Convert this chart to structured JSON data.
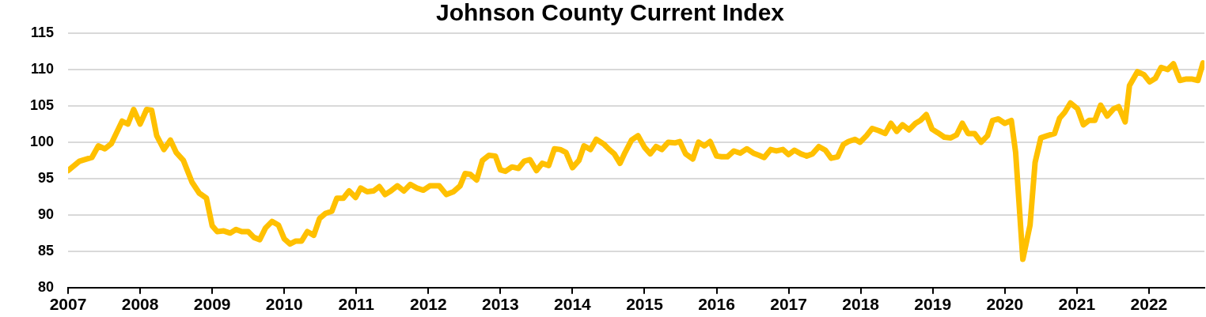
{
  "chart_data": {
    "type": "line",
    "title": "Johnson County Current Index",
    "x": [
      2007.0,
      2007.16,
      2007.33,
      2007.42,
      2007.51,
      2007.6,
      2007.75,
      2007.83,
      2007.91,
      2008.0,
      2008.09,
      2008.16,
      2008.23,
      2008.33,
      2008.42,
      2008.5,
      2008.6,
      2008.72,
      2008.82,
      2008.92,
      2009.0,
      2009.07,
      2009.16,
      2009.25,
      2009.33,
      2009.41,
      2009.5,
      2009.58,
      2009.66,
      2009.74,
      2009.83,
      2009.92,
      2010.0,
      2010.08,
      2010.16,
      2010.24,
      2010.32,
      2010.41,
      2010.49,
      2010.57,
      2010.66,
      2010.73,
      2010.82,
      2010.9,
      2010.99,
      2011.06,
      2011.15,
      2011.24,
      2011.32,
      2011.4,
      2011.48,
      2011.57,
      2011.66,
      2011.75,
      2011.84,
      2011.93,
      2012.02,
      2012.15,
      2012.25,
      2012.35,
      2012.44,
      2012.51,
      2012.58,
      2012.67,
      2012.75,
      2012.84,
      2012.93,
      2013.0,
      2013.07,
      2013.16,
      2013.25,
      2013.33,
      2013.41,
      2013.5,
      2013.58,
      2013.67,
      2013.75,
      2013.83,
      2013.91,
      2014.0,
      2014.09,
      2014.16,
      2014.25,
      2014.33,
      2014.44,
      2014.51,
      2014.58,
      2014.66,
      2014.73,
      2014.82,
      2014.91,
      2015.0,
      2015.08,
      2015.16,
      2015.24,
      2015.33,
      2015.42,
      2015.49,
      2015.57,
      2015.67,
      2015.75,
      2015.83,
      2015.91,
      2016.0,
      2016.07,
      2016.15,
      2016.24,
      2016.33,
      2016.42,
      2016.51,
      2016.59,
      2016.66,
      2016.75,
      2016.83,
      2016.92,
      2017.0,
      2017.08,
      2017.17,
      2017.25,
      2017.33,
      2017.42,
      2017.51,
      2017.59,
      2017.68,
      2017.76,
      2017.83,
      2017.92,
      2017.99,
      2018.08,
      2018.16,
      2018.25,
      2018.34,
      2018.42,
      2018.5,
      2018.58,
      2018.67,
      2018.76,
      2018.83,
      2018.91,
      2018.99,
      2019.07,
      2019.16,
      2019.25,
      2019.33,
      2019.41,
      2019.49,
      2019.58,
      2019.67,
      2019.76,
      2019.83,
      2019.91,
      2020.0,
      2020.09,
      2020.15,
      2020.25,
      2020.35,
      2020.42,
      2020.5,
      2020.59,
      2020.69,
      2020.76,
      2020.83,
      2020.91,
      2021.01,
      2021.09,
      2021.17,
      2021.25,
      2021.33,
      2021.42,
      2021.51,
      2021.58,
      2021.67,
      2021.73,
      2021.84,
      2021.93,
      2022.01,
      2022.09,
      2022.17,
      2022.26,
      2022.34,
      2022.43,
      2022.52,
      2022.59,
      2022.68,
      2022.75
    ],
    "series": [
      {
        "color": "#ffc000",
        "values": [
          96.1,
          97.4,
          97.9,
          99.5,
          99.1,
          99.8,
          102.9,
          102.5,
          104.5,
          102.5,
          104.5,
          104.4,
          100.9,
          99.0,
          100.3,
          98.6,
          97.5,
          94.5,
          93.0,
          92.3,
          88.5,
          87.7,
          87.8,
          87.5,
          88.0,
          87.7,
          87.7,
          86.9,
          86.6,
          88.2,
          89.1,
          88.6,
          86.7,
          86.0,
          86.4,
          86.4,
          87.7,
          87.2,
          89.5,
          90.2,
          90.5,
          92.3,
          92.3,
          93.3,
          92.4,
          93.7,
          93.2,
          93.3,
          93.9,
          92.8,
          93.3,
          94.0,
          93.3,
          94.2,
          93.7,
          93.4,
          94.0,
          94.0,
          92.8,
          93.2,
          94.0,
          95.7,
          95.6,
          94.8,
          97.5,
          98.2,
          98.1,
          96.2,
          96.0,
          96.6,
          96.4,
          97.4,
          97.6,
          96.1,
          97.1,
          96.8,
          99.1,
          99.0,
          98.6,
          96.5,
          97.5,
          99.5,
          99.0,
          100.4,
          99.7,
          99.0,
          98.4,
          97.1,
          98.6,
          100.3,
          100.9,
          99.3,
          98.4,
          99.4,
          99.0,
          100.0,
          99.9,
          100.1,
          98.4,
          97.7,
          100.0,
          99.5,
          100.1,
          98.1,
          98.0,
          98.0,
          98.8,
          98.5,
          99.1,
          98.5,
          98.2,
          97.9,
          99.0,
          98.8,
          99.0,
          98.3,
          98.9,
          98.4,
          98.1,
          98.4,
          99.4,
          98.9,
          97.8,
          98.0,
          99.7,
          100.1,
          100.4,
          100.0,
          100.9,
          101.9,
          101.6,
          101.2,
          102.6,
          101.5,
          102.4,
          101.7,
          102.6,
          103.0,
          103.8,
          101.8,
          101.3,
          100.7,
          100.6,
          101.0,
          102.6,
          101.2,
          101.2,
          100.0,
          100.9,
          103.0,
          103.2,
          102.6,
          103.0,
          98.6,
          83.9,
          88.6,
          97.2,
          100.6,
          100.9,
          101.2,
          103.3,
          104.1,
          105.4,
          104.6,
          102.4,
          103.0,
          103.0,
          105.1,
          103.6,
          104.6,
          104.9,
          102.8,
          107.8,
          109.7,
          109.3,
          108.3,
          108.8,
          110.3,
          110.0,
          110.8,
          108.5,
          108.7,
          108.7,
          108.5,
          110.9
        ]
      }
    ],
    "xlim": [
      2007,
      2022.77
    ],
    "xticks": [
      2007,
      2008,
      2009,
      2010,
      2011,
      2012,
      2013,
      2014,
      2015,
      2016,
      2017,
      2018,
      2019,
      2020,
      2021,
      2022
    ],
    "ylim": [
      80,
      115
    ],
    "yticks": [
      80,
      85,
      90,
      95,
      100,
      105,
      110,
      115
    ],
    "grid": "y",
    "legend": false,
    "marker": "none",
    "line_style": "solid"
  }
}
